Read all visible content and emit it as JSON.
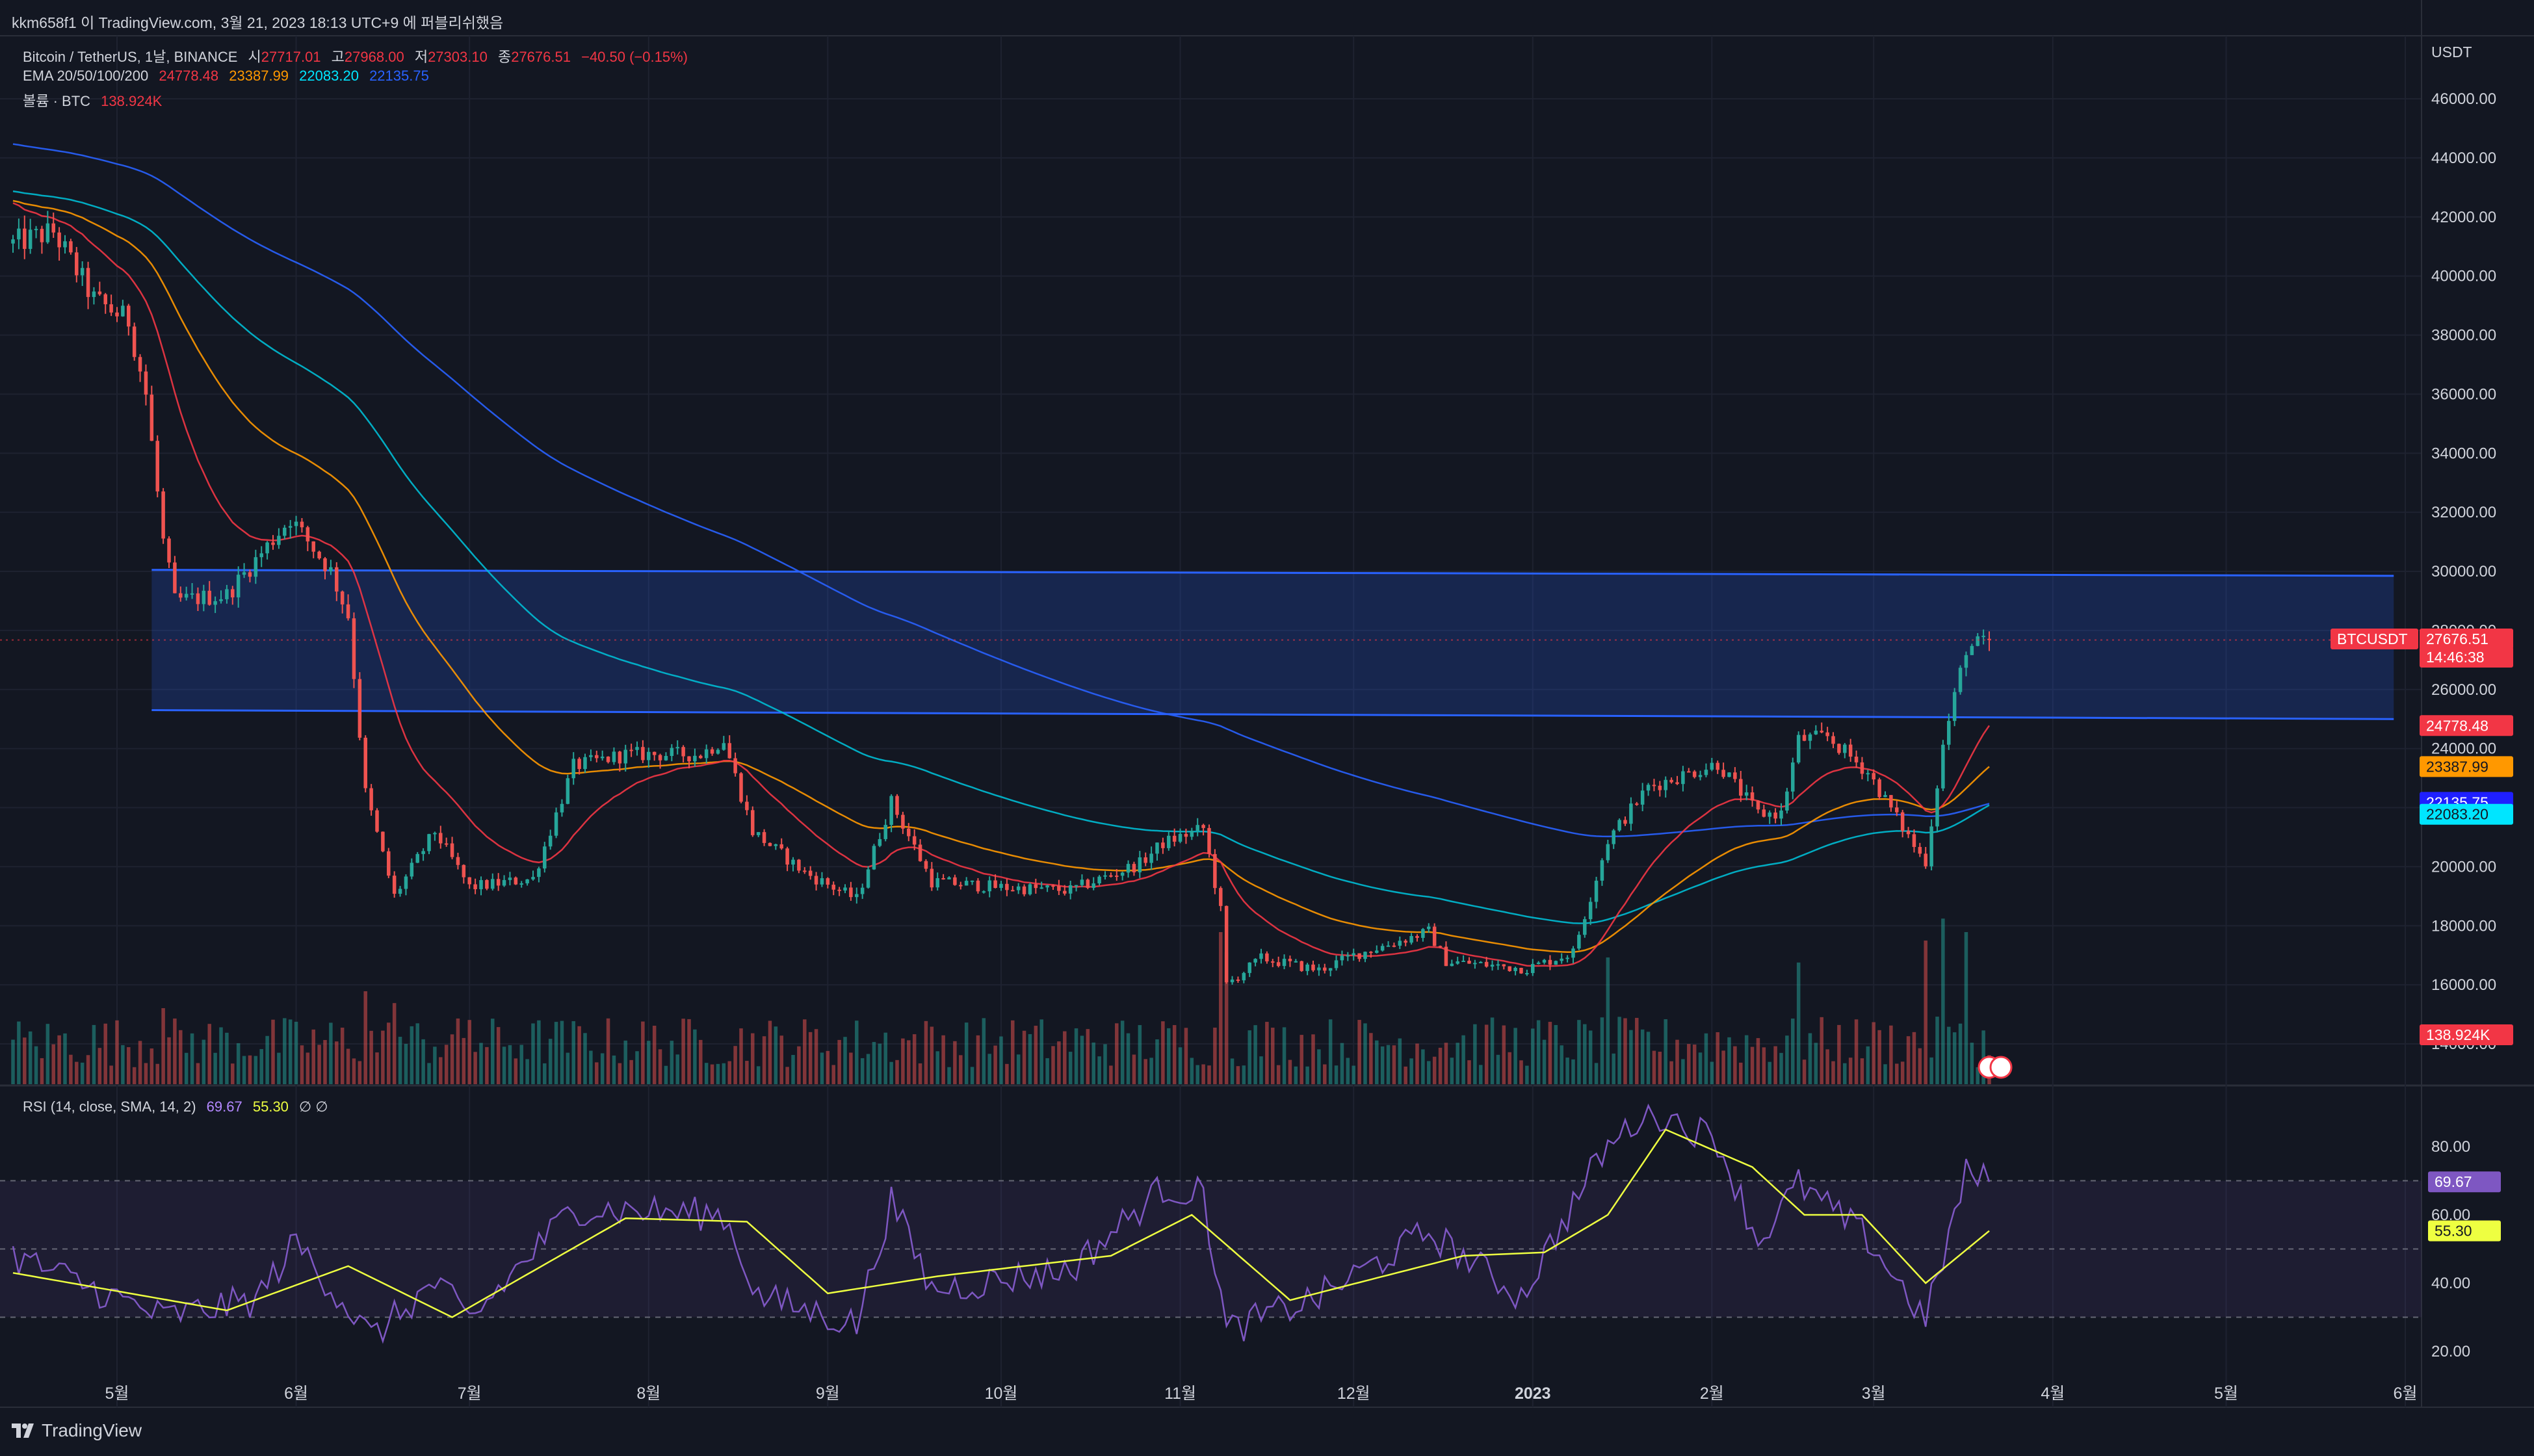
{
  "header": {
    "text": "kkm658f1 이 TradingView.com, 3월 21, 2023 18:13 UTC+9 에 퍼블리쉬했음"
  },
  "legend": {
    "symbol": "Bitcoin / TetherUS, 1날, BINANCE",
    "ohlc": [
      {
        "label": "시",
        "value": "27717.01"
      },
      {
        "label": "고",
        "value": "27968.00"
      },
      {
        "label": "저",
        "value": "27303.10"
      },
      {
        "label": "종",
        "value": "27676.51"
      }
    ],
    "change": "−40.50 (−0.15%)",
    "ema_label": "EMA 20/50/100/200",
    "ema_values": [
      "24778.48",
      "23387.99",
      "22083.20",
      "22135.75"
    ],
    "volume_label": "볼륨 · BTC",
    "volume_value": "138.924K",
    "rsi_label": "RSI (14, close, SMA, 14, 2)",
    "rsi_value": "69.67",
    "rsi_sma_value": "55.30",
    "rsi_tail": "∅ ∅"
  },
  "price_axis": {
    "currency": "USDT",
    "ticks": [
      "46000.00",
      "44000.00",
      "42000.00",
      "40000.00",
      "38000.00",
      "36000.00",
      "34000.00",
      "32000.00",
      "30000.00",
      "28000.00",
      "26000.00",
      "24000.00",
      "22000.00",
      "20000.00",
      "18000.00",
      "16000.00",
      "14000.00"
    ],
    "badges": [
      {
        "text": "27676.51",
        "color": "#f23645"
      },
      {
        "text": "14:46:38",
        "color": "#f23645"
      },
      {
        "text": "24778.48",
        "color": "#f23645"
      },
      {
        "text": "23387.99",
        "color": "#ff9800"
      },
      {
        "text": "22135.75",
        "color": "#1f1fff"
      },
      {
        "text": "22083.20",
        "color": "#00e5ff"
      },
      {
        "text": "138.924K",
        "color": "#f23645"
      }
    ],
    "symbol_badge": "BTCUSDT"
  },
  "rsi_axis": {
    "ticks": [
      "80.00",
      "60.00",
      "40.00",
      "20.00"
    ],
    "badges": [
      {
        "text": "69.67",
        "color": "#7e57c2"
      },
      {
        "text": "55.30",
        "color": "#eeff41"
      }
    ]
  },
  "time_axis": {
    "labels": [
      "5월",
      "6월",
      "7월",
      "8월",
      "9월",
      "10월",
      "11월",
      "12월",
      "2023",
      "2월",
      "3월",
      "4월",
      "5월",
      "6월"
    ]
  },
  "watermark": "TradingView",
  "colors": {
    "background": "#131722",
    "up": "#26a69a",
    "down": "#ef5350",
    "ema20": "#f23645",
    "ema50": "#ff9800",
    "ema100": "#00bcd4",
    "ema200": "#2962ff",
    "zone": "#2962ff",
    "rsi": "#7e57c2",
    "rsi_sma": "#eeff41"
  },
  "chart_data": {
    "type": "candlestick",
    "symbol": "BTCUSDT",
    "interval": "1D",
    "x_range": [
      "2022-04-13",
      "2023-06-01"
    ],
    "y_range": [
      14000,
      48000
    ],
    "daily_last": {
      "date": "2023-03-21",
      "open": 27717.01,
      "high": 27968.0,
      "low": 27303.1,
      "close": 27676.51
    },
    "close_anchors": [
      {
        "date": "2022-04-13",
        "close": 41100
      },
      {
        "date": "2022-04-20",
        "close": 41500
      },
      {
        "date": "2022-04-27",
        "close": 39200
      },
      {
        "date": "2022-05-03",
        "close": 38500
      },
      {
        "date": "2022-05-06",
        "close": 36000
      },
      {
        "date": "2022-05-09",
        "close": 31000
      },
      {
        "date": "2022-05-11",
        "close": 29000
      },
      {
        "date": "2022-05-20",
        "close": 29200
      },
      {
        "date": "2022-05-31",
        "close": 31800
      },
      {
        "date": "2022-06-07",
        "close": 30000
      },
      {
        "date": "2022-06-10",
        "close": 28500
      },
      {
        "date": "2022-06-13",
        "close": 22500
      },
      {
        "date": "2022-06-18",
        "close": 19000
      },
      {
        "date": "2022-06-25",
        "close": 21200
      },
      {
        "date": "2022-07-01",
        "close": 19300
      },
      {
        "date": "2022-07-12",
        "close": 19600
      },
      {
        "date": "2022-07-19",
        "close": 23400
      },
      {
        "date": "2022-07-28",
        "close": 23800
      },
      {
        "date": "2022-08-10",
        "close": 23800
      },
      {
        "date": "2022-08-14",
        "close": 24300
      },
      {
        "date": "2022-08-19",
        "close": 21200
      },
      {
        "date": "2022-08-28",
        "close": 19800
      },
      {
        "date": "2022-09-06",
        "close": 18900
      },
      {
        "date": "2022-09-12",
        "close": 22200
      },
      {
        "date": "2022-09-19",
        "close": 19500
      },
      {
        "date": "2022-10-01",
        "close": 19300
      },
      {
        "date": "2022-10-13",
        "close": 19200
      },
      {
        "date": "2022-10-25",
        "close": 20100
      },
      {
        "date": "2022-10-29",
        "close": 20800
      },
      {
        "date": "2022-11-05",
        "close": 21300
      },
      {
        "date": "2022-11-08",
        "close": 18500
      },
      {
        "date": "2022-11-09",
        "close": 16000
      },
      {
        "date": "2022-11-15",
        "close": 16900
      },
      {
        "date": "2022-11-25",
        "close": 16500
      },
      {
        "date": "2022-12-01",
        "close": 17000
      },
      {
        "date": "2022-12-14",
        "close": 17800
      },
      {
        "date": "2022-12-17",
        "close": 16800
      },
      {
        "date": "2022-12-31",
        "close": 16550
      },
      {
        "date": "2023-01-08",
        "close": 17100
      },
      {
        "date": "2023-01-14",
        "close": 20900
      },
      {
        "date": "2023-01-21",
        "close": 22700
      },
      {
        "date": "2023-02-02",
        "close": 23500
      },
      {
        "date": "2023-02-09",
        "close": 21800
      },
      {
        "date": "2023-02-13",
        "close": 21800
      },
      {
        "date": "2023-02-16",
        "close": 24300
      },
      {
        "date": "2023-02-21",
        "close": 24400
      },
      {
        "date": "2023-02-28",
        "close": 23200
      },
      {
        "date": "2023-03-09",
        "close": 20400
      },
      {
        "date": "2023-03-10",
        "close": 20200
      },
      {
        "date": "2023-03-13",
        "close": 24100
      },
      {
        "date": "2023-03-17",
        "close": 27400
      },
      {
        "date": "2023-03-21",
        "close": 27676.51
      }
    ],
    "ema_last": {
      "ema20": 24778.48,
      "ema50": 23387.99,
      "ema100": 22083.2,
      "ema200": 22135.75
    },
    "ema_start": {
      "ema20": 42600,
      "ema50": 42600,
      "ema100": 42900,
      "ema200": 44500
    },
    "zone": {
      "start": "2022-05-07",
      "end": "2023-05-30",
      "upper": [
        30050,
        29850
      ],
      "lower": [
        25300,
        25000
      ]
    },
    "rsi": {
      "y_range": [
        15,
        90
      ],
      "overbought": 70,
      "middle": 50,
      "oversold": 30,
      "last": 69.67,
      "sma_last": 55.3,
      "anchors": [
        {
          "date": "2022-04-13",
          "value": 48
        },
        {
          "date": "2022-05-09",
          "value": 30
        },
        {
          "date": "2022-05-25",
          "value": 35
        },
        {
          "date": "2022-06-01",
          "value": 52
        },
        {
          "date": "2022-06-14",
          "value": 24
        },
        {
          "date": "2022-06-25",
          "value": 40
        },
        {
          "date": "2022-07-01",
          "value": 29
        },
        {
          "date": "2022-07-19",
          "value": 62
        },
        {
          "date": "2022-08-14",
          "value": 60
        },
        {
          "date": "2022-08-20",
          "value": 36
        },
        {
          "date": "2022-09-06",
          "value": 28
        },
        {
          "date": "2022-09-12",
          "value": 64
        },
        {
          "date": "2022-09-19",
          "value": 38
        },
        {
          "date": "2022-10-13",
          "value": 44
        },
        {
          "date": "2022-10-29",
          "value": 68
        },
        {
          "date": "2022-11-05",
          "value": 66
        },
        {
          "date": "2022-11-09",
          "value": 26
        },
        {
          "date": "2022-11-25",
          "value": 36
        },
        {
          "date": "2022-12-14",
          "value": 55
        },
        {
          "date": "2022-12-30",
          "value": 36
        },
        {
          "date": "2023-01-13",
          "value": 78
        },
        {
          "date": "2023-01-21",
          "value": 91
        },
        {
          "date": "2023-02-02",
          "value": 82
        },
        {
          "date": "2023-02-09",
          "value": 52
        },
        {
          "date": "2023-02-16",
          "value": 69
        },
        {
          "date": "2023-02-28",
          "value": 53
        },
        {
          "date": "2023-03-10",
          "value": 29
        },
        {
          "date": "2023-03-17",
          "value": 72
        },
        {
          "date": "2023-03-21",
          "value": 69.67
        }
      ],
      "sma_anchors": [
        {
          "date": "2022-04-13",
          "value": 43
        },
        {
          "date": "2022-05-20",
          "value": 32
        },
        {
          "date": "2022-06-10",
          "value": 45
        },
        {
          "date": "2022-06-28",
          "value": 30
        },
        {
          "date": "2022-07-28",
          "value": 59
        },
        {
          "date": "2022-08-18",
          "value": 58
        },
        {
          "date": "2022-09-01",
          "value": 37
        },
        {
          "date": "2022-09-20",
          "value": 42
        },
        {
          "date": "2022-10-20",
          "value": 48
        },
        {
          "date": "2022-11-03",
          "value": 60
        },
        {
          "date": "2022-11-20",
          "value": 35
        },
        {
          "date": "2022-12-20",
          "value": 48
        },
        {
          "date": "2023-01-03",
          "value": 49
        },
        {
          "date": "2023-01-14",
          "value": 60
        },
        {
          "date": "2023-01-24",
          "value": 85
        },
        {
          "date": "2023-02-08",
          "value": 74
        },
        {
          "date": "2023-02-17",
          "value": 60
        },
        {
          "date": "2023-02-27",
          "value": 60
        },
        {
          "date": "2023-03-10",
          "value": 40
        },
        {
          "date": "2023-03-21",
          "value": 55.3
        }
      ]
    },
    "volume": {
      "last": "138.924K",
      "notable": [
        {
          "date": "2022-05-09",
          "level": 0.45
        },
        {
          "date": "2022-06-13",
          "level": 0.55
        },
        {
          "date": "2022-06-18",
          "level": 0.48
        },
        {
          "date": "2022-07-01",
          "level": 0.38
        },
        {
          "date": "2022-11-08",
          "level": 0.9
        },
        {
          "date": "2022-11-09",
          "level": 0.78
        },
        {
          "date": "2023-01-14",
          "level": 0.75
        },
        {
          "date": "2023-02-16",
          "level": 0.72
        },
        {
          "date": "2023-03-10",
          "level": 0.85
        },
        {
          "date": "2023-03-13",
          "level": 0.98
        },
        {
          "date": "2023-03-17",
          "level": 0.9
        }
      ]
    }
  }
}
